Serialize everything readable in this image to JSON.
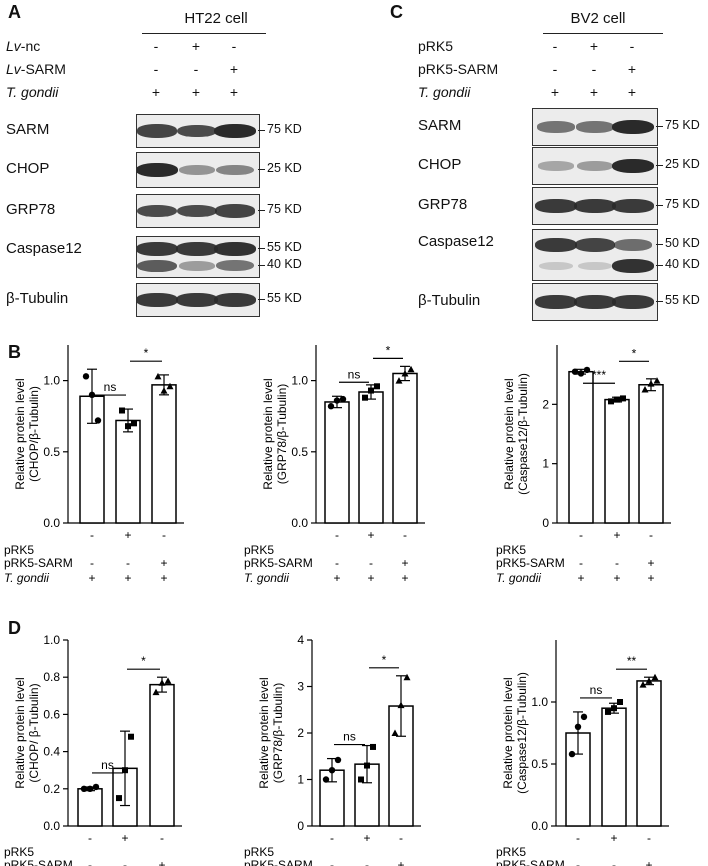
{
  "panels": {
    "A": {
      "letter": "A",
      "cell": "HT22 cell",
      "treatments": [
        {
          "label_prefix": "Lv",
          "label_suffix": "-nc",
          "signs": [
            "-",
            "+",
            "-"
          ]
        },
        {
          "label_prefix": "Lv",
          "label_suffix": "-SARM",
          "signs": [
            "-",
            "-",
            "+"
          ]
        },
        {
          "label_prefix": "T. gondii",
          "label_suffix": "",
          "signs": [
            "+",
            "+",
            "+"
          ]
        }
      ],
      "blots": [
        {
          "name": "SARM",
          "markers": [
            "75 KD"
          ],
          "bands": [
            [
              0.85,
              0.8,
              1.0
            ]
          ]
        },
        {
          "name": "CHOP",
          "markers": [
            "25 KD"
          ],
          "bands": [
            [
              1.0,
              0.35,
              0.45
            ]
          ]
        },
        {
          "name": "GRP78",
          "markers": [
            "75 KD"
          ],
          "bands": [
            [
              0.8,
              0.8,
              0.85
            ]
          ]
        },
        {
          "name": "Caspase12",
          "markers": [
            "55 KD",
            "40 KD"
          ],
          "bands": [
            [
              0.9,
              0.9,
              0.95
            ],
            [
              0.7,
              0.3,
              0.55
            ]
          ]
        },
        {
          "name": "β-Tubulin",
          "markers": [
            "55 KD"
          ],
          "bands": [
            [
              0.9,
              0.9,
              0.9
            ]
          ]
        }
      ]
    },
    "C": {
      "letter": "C",
      "cell": "BV2 cell",
      "treatments": [
        {
          "label_prefix": "pRK5",
          "label_suffix": "",
          "signs": [
            "-",
            "+",
            "-"
          ]
        },
        {
          "label_prefix": "pRK5-SARM",
          "label_suffix": "",
          "signs": [
            "-",
            "-",
            "+"
          ]
        },
        {
          "label_prefix": "T. gondii",
          "label_suffix": "",
          "signs": [
            "+",
            "+",
            "+"
          ]
        }
      ],
      "blots": [
        {
          "name": "SARM",
          "markers": [
            "75 KD"
          ],
          "bands": [
            [
              0.55,
              0.55,
              1.0
            ]
          ]
        },
        {
          "name": "CHOP",
          "markers": [
            "25 KD"
          ],
          "bands": [
            [
              0.25,
              0.3,
              1.0
            ]
          ]
        },
        {
          "name": "GRP78",
          "markers": [
            "75 KD"
          ],
          "bands": [
            [
              0.9,
              0.9,
              0.9
            ]
          ]
        },
        {
          "name": "Caspase12",
          "markers": [
            "50 KD",
            "40 KD"
          ],
          "bands": [
            [
              0.9,
              0.85,
              0.6
            ],
            [
              0.05,
              0.05,
              0.95
            ]
          ]
        },
        {
          "name": "β-Tubulin",
          "markers": [
            "55 KD"
          ],
          "bands": [
            [
              0.9,
              0.9,
              0.9
            ]
          ]
        }
      ]
    },
    "B": {
      "letter": "B"
    },
    "D": {
      "letter": "D"
    }
  },
  "bar_table": {
    "rows": [
      {
        "label": "pRK5",
        "signs": [
          "-",
          "+",
          "-"
        ]
      },
      {
        "label": "pRK5-SARM",
        "signs": [
          "-",
          "-",
          "+"
        ]
      },
      {
        "label": "T. gondii",
        "signs": [
          "+",
          "+",
          "+"
        ]
      }
    ]
  },
  "chart_data": [
    {
      "panel": "B",
      "type": "bar",
      "categories": [
        "1",
        "2",
        "3"
      ],
      "values": [
        0.89,
        0.72,
        0.97
      ],
      "errors": [
        0.19,
        0.08,
        0.07
      ],
      "points": [
        [
          1.03,
          0.9,
          0.72
        ],
        [
          0.79,
          0.68,
          0.7
        ],
        [
          1.03,
          0.93,
          0.96
        ]
      ],
      "ylabel": [
        "Relative protein level",
        "(CHOP/β-Tubulin)"
      ],
      "ylim": [
        0,
        1.25
      ],
      "ticks": [
        0.0,
        0.5,
        1.0
      ],
      "tick_labels": [
        "0.0",
        "0.5",
        "1.0"
      ],
      "sig": [
        {
          "from": 0,
          "to": 1,
          "text": "ns"
        },
        {
          "from": 1,
          "to": 2,
          "text": "*"
        }
      ]
    },
    {
      "panel": "B",
      "type": "bar",
      "categories": [
        "1",
        "2",
        "3"
      ],
      "values": [
        0.85,
        0.92,
        1.05
      ],
      "errors": [
        0.04,
        0.05,
        0.05
      ],
      "points": [
        [
          0.82,
          0.86,
          0.87
        ],
        [
          0.88,
          0.93,
          0.96
        ],
        [
          1.0,
          1.05,
          1.08
        ]
      ],
      "ylabel": [
        "Relative protein level",
        "(GRP78/β-Tubulin)"
      ],
      "ylim": [
        0,
        1.25
      ],
      "ticks": [
        0.0,
        0.5,
        1.0
      ],
      "tick_labels": [
        "0.0",
        "0.5",
        "1.0"
      ],
      "sig": [
        {
          "from": 0,
          "to": 1,
          "text": "ns"
        },
        {
          "from": 1,
          "to": 2,
          "text": "*"
        }
      ]
    },
    {
      "panel": "B",
      "type": "bar",
      "categories": [
        "1",
        "2",
        "3"
      ],
      "values": [
        2.55,
        2.08,
        2.33
      ],
      "errors": [
        0.04,
        0.04,
        0.1
      ],
      "points": [
        [
          2.55,
          2.52,
          2.58
        ],
        [
          2.05,
          2.08,
          2.1
        ],
        [
          2.25,
          2.35,
          2.4
        ]
      ],
      "ylabel": [
        "Relative protein level",
        "(Caspase12/β-Tubulin)"
      ],
      "ylim": [
        0,
        3.0
      ],
      "ticks": [
        0,
        1,
        2
      ],
      "tick_labels": [
        "0",
        "1",
        "2"
      ],
      "sig": [
        {
          "from": 0,
          "to": 1,
          "text": "***"
        },
        {
          "from": 1,
          "to": 2,
          "text": "*"
        }
      ]
    },
    {
      "panel": "D",
      "type": "bar",
      "categories": [
        "1",
        "2",
        "3"
      ],
      "values": [
        0.2,
        0.31,
        0.76
      ],
      "errors": [
        0.01,
        0.2,
        0.04
      ],
      "points": [
        [
          0.2,
          0.2,
          0.21
        ],
        [
          0.15,
          0.3,
          0.48
        ],
        [
          0.72,
          0.77,
          0.78
        ]
      ],
      "ylabel": [
        "Relative protein level",
        "(CHOP/ β-Tubulin)"
      ],
      "ylim": [
        0,
        1.0
      ],
      "ticks": [
        0.0,
        0.2,
        0.4,
        0.6,
        0.8,
        1.0
      ],
      "tick_labels": [
        "0.0",
        "0.2",
        "0.4",
        "0.6",
        "0.8",
        "1.0"
      ],
      "sig": [
        {
          "from": 0,
          "to": 1,
          "text": "ns"
        },
        {
          "from": 1,
          "to": 2,
          "text": "*"
        }
      ]
    },
    {
      "panel": "D",
      "type": "bar",
      "categories": [
        "1",
        "2",
        "3"
      ],
      "values": [
        1.2,
        1.33,
        2.58
      ],
      "errors": [
        0.25,
        0.4,
        0.65
      ],
      "points": [
        [
          1.0,
          1.2,
          1.42
        ],
        [
          1.0,
          1.3,
          1.7
        ],
        [
          2.0,
          2.6,
          3.2
        ]
      ],
      "ylabel": [
        "Relative protein level",
        "(GRP78/β-Tubulin)"
      ],
      "ylim": [
        0,
        4
      ],
      "ticks": [
        0,
        1,
        2,
        3,
        4
      ],
      "tick_labels": [
        "0",
        "1",
        "2",
        "3",
        "4"
      ],
      "sig": [
        {
          "from": 0,
          "to": 1,
          "text": "ns"
        },
        {
          "from": 1,
          "to": 2,
          "text": "*"
        }
      ]
    },
    {
      "panel": "D",
      "type": "bar",
      "categories": [
        "1",
        "2",
        "3"
      ],
      "values": [
        0.75,
        0.95,
        1.17
      ],
      "errors": [
        0.17,
        0.04,
        0.03
      ],
      "points": [
        [
          0.58,
          0.8,
          0.88
        ],
        [
          0.92,
          0.95,
          1.0
        ],
        [
          1.14,
          1.17,
          1.2
        ]
      ],
      "ylabel": [
        "Relative protein level",
        "(Caspase12/β-Tubulin)"
      ],
      "ylim": [
        0,
        1.5
      ],
      "ticks": [
        0.0,
        0.5,
        1.0
      ],
      "tick_labels": [
        "0.0",
        "0.5",
        "1.0"
      ],
      "sig": [
        {
          "from": 0,
          "to": 1,
          "text": "ns"
        },
        {
          "from": 1,
          "to": 2,
          "text": "**"
        }
      ]
    }
  ]
}
